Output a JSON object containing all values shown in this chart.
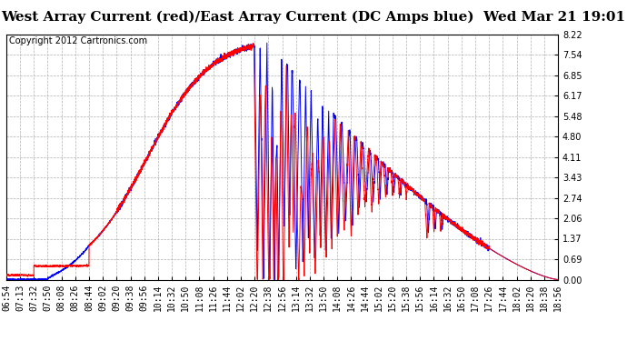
{
  "title": "West Array Current (red)/East Array Current (DC Amps blue)  Wed Mar 21 19:01",
  "copyright": "Copyright 2012 Cartronics.com",
  "ymin": 0.0,
  "ymax": 8.22,
  "yticks": [
    0.0,
    0.69,
    1.37,
    2.06,
    2.74,
    3.43,
    4.11,
    4.8,
    5.48,
    6.17,
    6.85,
    7.54,
    8.22
  ],
  "x_labels": [
    "06:54",
    "07:13",
    "07:32",
    "07:50",
    "08:08",
    "08:26",
    "08:44",
    "09:02",
    "09:20",
    "09:38",
    "09:56",
    "10:14",
    "10:32",
    "10:50",
    "11:08",
    "11:26",
    "11:44",
    "12:02",
    "12:20",
    "12:38",
    "12:56",
    "13:14",
    "13:32",
    "13:50",
    "14:08",
    "14:26",
    "14:44",
    "15:02",
    "15:20",
    "15:38",
    "15:56",
    "16:14",
    "16:32",
    "16:50",
    "17:08",
    "17:26",
    "17:44",
    "18:02",
    "18:20",
    "18:38",
    "18:56"
  ],
  "background_color": "#ffffff",
  "grid_color": "#b0b0b0",
  "line_color_red": "#ff0000",
  "line_color_blue": "#0000ff",
  "title_fontsize": 11,
  "tick_fontsize": 7,
  "copyright_fontsize": 7
}
